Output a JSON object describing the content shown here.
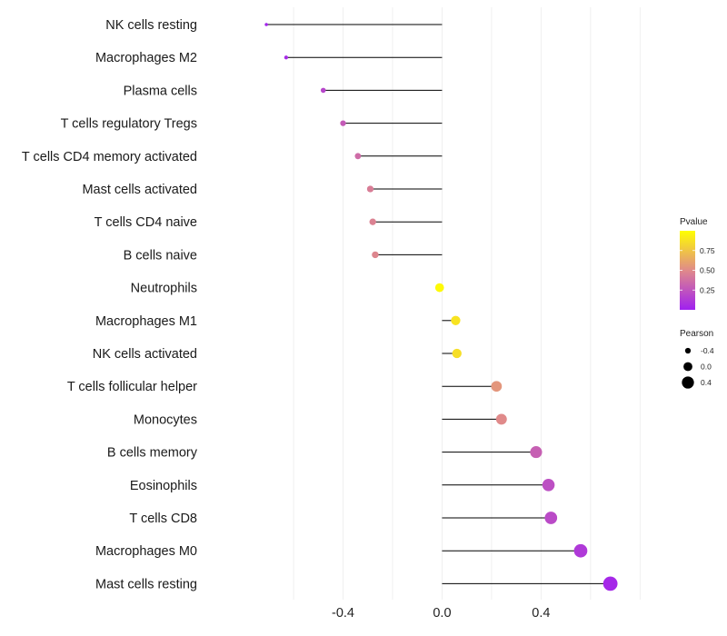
{
  "chart_data": {
    "type": "lollipop",
    "categories": [
      "NK cells resting",
      "Macrophages M2",
      "Plasma cells",
      "T cells regulatory  Tregs",
      "T cells CD4 memory activated",
      "Mast cells activated",
      "T cells CD4 naive",
      "B cells naive",
      "Neutrophils",
      "Macrophages M1",
      "NK cells activated",
      "T cells follicular helper",
      "Monocytes",
      "B cells memory",
      "Eosinophils",
      "T cells CD8",
      "Macrophages M0",
      "Mast cells resting"
    ],
    "pearson": [
      -0.71,
      -0.63,
      -0.48,
      -0.4,
      -0.34,
      -0.29,
      -0.28,
      -0.27,
      -0.01,
      0.055,
      0.06,
      0.22,
      0.24,
      0.38,
      0.43,
      0.44,
      0.56,
      0.68
    ],
    "pvalue": [
      0.02,
      0.05,
      0.18,
      0.28,
      0.36,
      0.44,
      0.46,
      0.48,
      0.98,
      0.88,
      0.86,
      0.55,
      0.5,
      0.3,
      0.22,
      0.2,
      0.12,
      0.04
    ],
    "x_ticks": [
      -0.4,
      0.0,
      0.4
    ],
    "x_tick_labels": [
      "-0.4",
      "0.0",
      "0.4"
    ],
    "xlim": [
      -0.96,
      0.92
    ],
    "xlabel": "",
    "ylabel": "",
    "title": "",
    "legend_pvalue": {
      "title": "Pvalue",
      "ticks": [
        0.75,
        0.5,
        0.25
      ],
      "tick_labels": [
        "0.75",
        "0.50",
        "0.25"
      ],
      "color_low": "#a020f0",
      "color_mid": "#e08a8a",
      "color_high": "#ffff00"
    },
    "legend_pearson": {
      "title": "Pearson",
      "values": [
        -0.4,
        0.0,
        0.4
      ],
      "labels": [
        "-0.4",
        "0.0",
        "0.4"
      ]
    }
  }
}
